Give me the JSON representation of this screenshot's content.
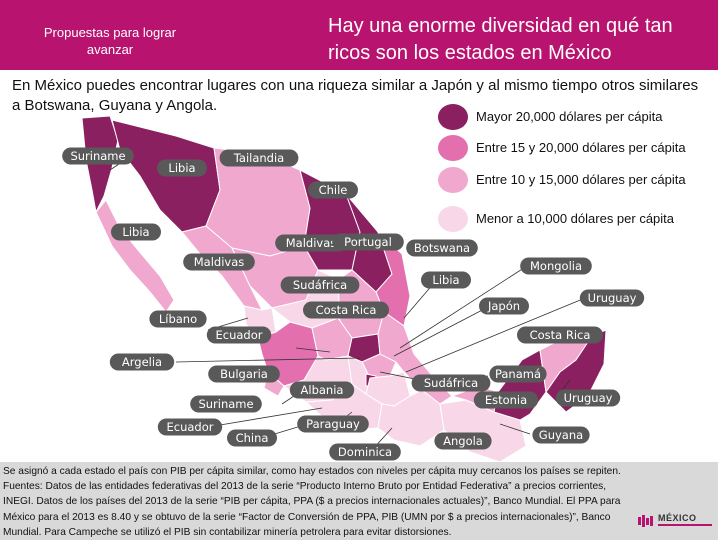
{
  "header": {
    "left_label": "Propuestas para lograr avanzar",
    "title": "Hay una enorme diversidad en qué tan ricos son los estados en México"
  },
  "intro": "En México puedes encontrar lugares con una riqueza similar a Japón y al mismo tiempo otros similares a Botswana, Guyana y Angola.",
  "legend": [
    {
      "label": "Mayor 20,000 dólares per cápita",
      "color": "#8a2060"
    },
    {
      "label": "Entre 15 y 20,000 dólares per cápita",
      "color": "#e36fae"
    },
    {
      "label": "Entre 10 y 15,000 dólares per cápita",
      "color": "#f0a8cf"
    },
    {
      "label": "Menor a 10,000 dólares per cápita",
      "color": "#f7d7e8"
    }
  ],
  "labels": [
    "Suriname",
    "Libia",
    "Tailandia",
    "Libia",
    "Chile",
    "Maldivas",
    "Portugal",
    "Maldivas",
    "Botswana",
    "Mongolia",
    "Sudáfrica",
    "Libia",
    "Costa Rica",
    "Japón",
    "Uruguay",
    "Líbano",
    "Ecuador",
    "Costa Rica",
    "Argelia",
    "Bulgaria",
    "Sudáfrica",
    "Panamá",
    "Albania",
    "Suriname",
    "Estonia",
    "Uruguay",
    "Ecuador",
    "Paraguay",
    "China",
    "Guyana",
    "Angola",
    "Dominica"
  ],
  "footer": {
    "text": "Se asignó a cada estado el país con PIB per cápita similar, como hay estados con niveles per cápita muy cercanos los países se repiten. Fuentes: Datos de las entidades federativas del 2013 de la serie “Producto Interno Bruto por Entidad Federativa” a precios corrientes, INEGI. Datos de los países del 2013 de la serie “PIB per cápita, PPA ($ a precios internacionales actuales)”, Banco Mundial. El PPA para México para el 2013 es 8.40 y se obtuvo de la serie “Factor de Conversión de PPA, PIB (UMN por $ a precios internacionales)”, Banco Mundial. Para Campeche se utilizó el PIB sin contabilizar minería petrolera para evitar distorsiones.",
    "logo": "MÉXICO"
  }
}
